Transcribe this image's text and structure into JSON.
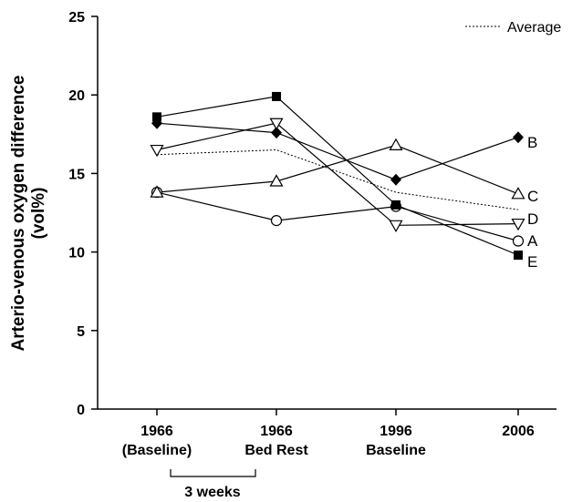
{
  "chart_data": {
    "type": "line",
    "ylabel_line1": "Arterio-venous oxygen difference",
    "ylabel_line2": "(vol%)",
    "ylim": [
      0,
      25
    ],
    "y_ticks": [
      "0",
      "5",
      "10",
      "15",
      "20",
      "25"
    ],
    "categories": [
      {
        "line1": "1966",
        "line2": "(Baseline)"
      },
      {
        "line1": "1966",
        "line2": "Bed Rest"
      },
      {
        "line1": "1996",
        "line2": "Baseline"
      },
      {
        "line1": "2006",
        "line2": ""
      }
    ],
    "bracket_label": "3 weeks",
    "legend": {
      "label": "Average",
      "position": "top-right",
      "style": "dotted"
    },
    "series": [
      {
        "name": "A",
        "marker": "circle-open",
        "values": [
          13.8,
          12.0,
          12.9,
          10.7
        ]
      },
      {
        "name": "B",
        "marker": "diamond-filled",
        "values": [
          18.2,
          17.6,
          14.6,
          17.3
        ]
      },
      {
        "name": "C",
        "marker": "triangle-up-open",
        "values": [
          13.8,
          14.5,
          16.8,
          13.7
        ]
      },
      {
        "name": "D",
        "marker": "triangle-down-open",
        "values": [
          16.5,
          18.2,
          11.7,
          11.8
        ]
      },
      {
        "name": "E",
        "marker": "square-filled",
        "values": [
          18.6,
          19.9,
          13.0,
          9.8
        ]
      },
      {
        "name": "Average",
        "style": "dotted",
        "values": [
          16.2,
          16.5,
          13.8,
          12.7
        ]
      }
    ],
    "grid": false
  }
}
